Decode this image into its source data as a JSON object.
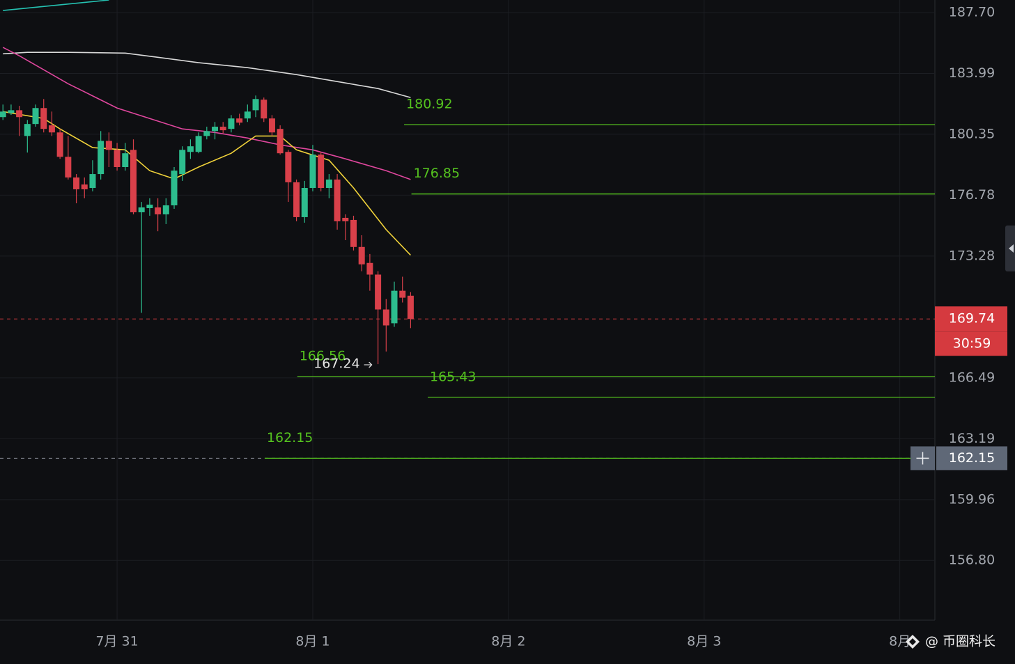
{
  "chart_data": {
    "type": "candlestick",
    "log_scale": true,
    "grid": true,
    "xlim": [
      -14.36,
      100.3
    ],
    "xticks": [
      {
        "value": 0,
        "label": "7月 31"
      },
      {
        "value": 24,
        "label": "8月 1"
      },
      {
        "value": 48,
        "label": "8月 2"
      },
      {
        "value": 72,
        "label": "8月 3"
      },
      {
        "value": 96,
        "label": "8月"
      }
    ],
    "ylim": [
      153.79,
      188.48
    ],
    "yticks": [
      {
        "value": 187.7,
        "label": "187.70"
      },
      183.99,
      180.35,
      176.78,
      173.28,
      166.49,
      163.19,
      159.96,
      {
        "value": 156.8,
        "label": "156.80"
      }
    ],
    "up_color": "#2dbd8e",
    "down_color": "#d9404a",
    "x": [
      -14,
      -13,
      -12,
      -11,
      -10,
      -9,
      -8,
      -7,
      -6,
      -5,
      -4,
      -3,
      -2,
      -1,
      0,
      1,
      2,
      3,
      4,
      5,
      6,
      7,
      8,
      9,
      10,
      11,
      12,
      13,
      14,
      15,
      16,
      17,
      18,
      19,
      20,
      21,
      22,
      23,
      24,
      25,
      26,
      27,
      28,
      29,
      30,
      31,
      32,
      33,
      34,
      35,
      36
    ],
    "open": [
      181.37,
      181.62,
      181.78,
      180.25,
      180.96,
      181.91,
      180.88,
      180.46,
      179.02,
      177.81,
      177.4,
      177.2,
      178.01,
      179.96,
      179.43,
      178.42,
      179.43,
      175.79,
      176.03,
      176.07,
      175.67,
      176.19,
      178.01,
      179.31,
      179.31,
      180.25,
      180.54,
      180.8,
      180.67,
      181.29,
      181.29,
      181.78,
      182.41,
      181.29,
      180.67,
      179.31,
      177.53,
      175.51,
      177.2,
      179.15,
      177.2,
      177.69,
      175.47,
      175.35,
      173.8,
      172.89,
      172.23,
      170.27,
      169.5,
      171.32,
      171.04
    ],
    "high": [
      182.12,
      182.12,
      182.04,
      181.2,
      182.12,
      182.45,
      181.7,
      180.67,
      180.25,
      178.01,
      177.81,
      178.82,
      180.54,
      180.46,
      179.84,
      179.84,
      180.05,
      176.39,
      176.6,
      176.6,
      176.6,
      178.42,
      179.64,
      180.05,
      180.46,
      180.8,
      181.08,
      181.08,
      181.49,
      181.57,
      182.12,
      182.66,
      182.54,
      181.49,
      180.88,
      179.43,
      177.69,
      177.61,
      179.72,
      179.31,
      178.01,
      178.01,
      175.67,
      175.59,
      174.47,
      173.4,
      172.42,
      170.85,
      171.83,
      172.11,
      171.24
    ],
    "low": [
      181.2,
      181.5,
      180.25,
      179.27,
      180.8,
      180.46,
      180.25,
      178.9,
      177.69,
      176.31,
      176.6,
      177.0,
      177.69,
      178.42,
      178.21,
      178.21,
      175.67,
      170.08,
      175.59,
      174.7,
      175.11,
      175.99,
      177.61,
      178.9,
      179.23,
      180.05,
      180.05,
      180.42,
      180.46,
      180.88,
      181.08,
      181.37,
      181.08,
      180.25,
      179.15,
      176.39,
      175.27,
      175.19,
      177.0,
      177.0,
      176.6,
      174.79,
      174.19,
      173.6,
      172.42,
      171.32,
      167.24,
      167.93,
      169.3,
      170.66,
      169.23
    ],
    "close": [
      181.7,
      181.78,
      181.37,
      180.96,
      181.91,
      180.67,
      180.46,
      179.02,
      177.81,
      177.12,
      177.12,
      178.01,
      179.96,
      179.43,
      178.42,
      179.23,
      175.79,
      176.07,
      176.23,
      175.67,
      176.19,
      178.21,
      179.43,
      179.64,
      180.25,
      180.54,
      180.8,
      180.59,
      181.29,
      181.04,
      181.7,
      182.45,
      181.29,
      180.46,
      179.23,
      177.53,
      175.51,
      177.2,
      179.15,
      177.2,
      177.69,
      175.27,
      175.27,
      173.8,
      172.81,
      172.23,
      170.27,
      169.38,
      171.32,
      170.93,
      169.74
    ],
    "lines": [
      {
        "color": "#25c2b2",
        "x": [
          -14,
          -1
        ],
        "values": [
          187.83,
          188.48
        ]
      },
      {
        "color": "#d9d9d9",
        "x": [
          -14,
          -11,
          -6,
          1,
          5,
          10,
          16,
          22,
          27,
          32,
          36
        ],
        "values": [
          185.18,
          185.27,
          185.27,
          185.22,
          184.97,
          184.64,
          184.34,
          183.92,
          183.5,
          183.08,
          182.54
        ]
      },
      {
        "color": "#e0479e",
        "x": [
          -14,
          -12,
          -6,
          0,
          4,
          8,
          12,
          16,
          20,
          24,
          28,
          33,
          36
        ],
        "values": [
          185.57,
          185.06,
          183.37,
          181.91,
          181.29,
          180.67,
          180.46,
          180.13,
          179.72,
          179.43,
          178.9,
          178.21,
          177.69
        ]
      },
      {
        "color": "#f0d23a",
        "x": [
          -14,
          -9,
          -7,
          -3,
          1,
          4,
          7,
          10,
          14,
          17,
          20,
          22,
          26,
          29,
          33,
          36
        ],
        "values": [
          181.7,
          181.29,
          180.67,
          179.56,
          179.43,
          178.21,
          177.73,
          178.42,
          179.23,
          180.25,
          180.25,
          179.43,
          178.82,
          177.2,
          174.79,
          173.33
        ]
      }
    ],
    "level_color": "#55c21f",
    "levels": [
      {
        "value": 180.92,
        "from": 35.2
      },
      {
        "value": 176.85,
        "from": 36.1
      },
      {
        "value": 166.56,
        "from": 22.1
      },
      {
        "value": 165.43,
        "from": 38.1
      },
      {
        "value": 162.15,
        "from": 18.1
      }
    ],
    "low_marker": {
      "value": 167.24,
      "x": 32
    },
    "last_price": {
      "value": 169.74,
      "countdown": "30:59",
      "color": "#d53a3f"
    },
    "crosshair": {
      "value": 162.15
    }
  },
  "watermark": "@ 币圈科长"
}
